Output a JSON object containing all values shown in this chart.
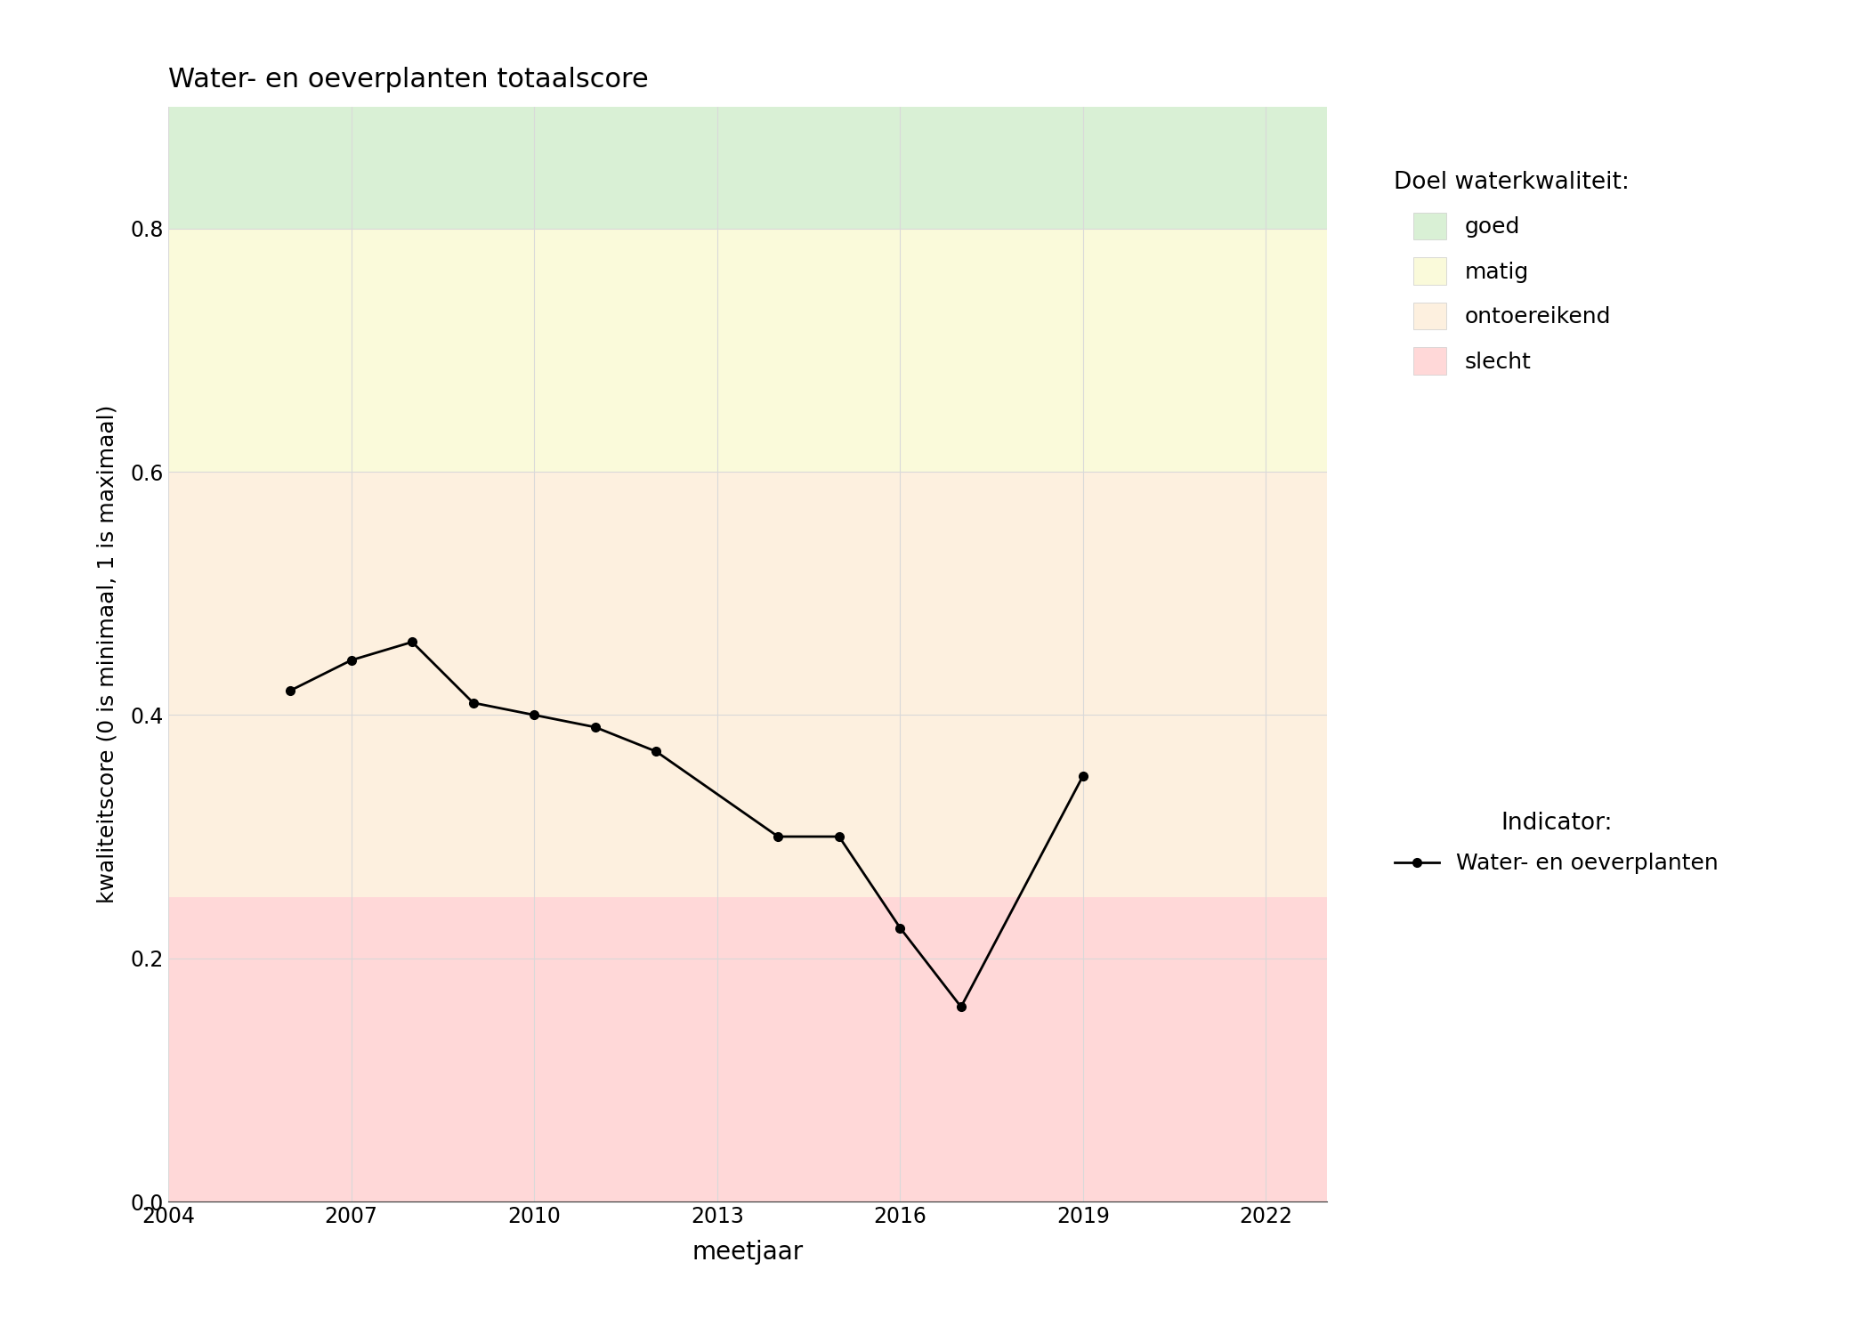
{
  "title": "Water- en oeverplanten totaalscore",
  "xlabel": "meetjaar",
  "ylabel": "kwaliteitscore (0 is minimaal, 1 is maximaal)",
  "years": [
    2006,
    2007,
    2008,
    2009,
    2010,
    2011,
    2012,
    2014,
    2015,
    2016,
    2017,
    2019,
    2022
  ],
  "values": [
    0.42,
    0.445,
    0.46,
    0.41,
    0.4,
    0.39,
    0.37,
    0.3,
    0.3,
    0.225,
    0.16,
    0.35,
    null
  ],
  "years_plot": [
    2006,
    2007,
    2008,
    2009,
    2010,
    2011,
    2012,
    2014,
    2015,
    2016,
    2017,
    2019,
    2022
  ],
  "values_plot": [
    0.42,
    0.445,
    0.46,
    0.41,
    0.4,
    0.39,
    0.37,
    0.3,
    0.3,
    0.225,
    0.16,
    0.35,
    null
  ],
  "xlim": [
    2004,
    2023
  ],
  "ylim": [
    0,
    0.9
  ],
  "xticks": [
    2004,
    2007,
    2010,
    2013,
    2016,
    2019,
    2022
  ],
  "yticks": [
    0.0,
    0.2,
    0.4,
    0.6,
    0.8
  ],
  "zone_goed_color": "#d9f0d5",
  "zone_matig_color": "#fafada",
  "zone_ontoereikend_color": "#fdf0df",
  "zone_slecht_color": "#ffd8d8",
  "zone_goed_range": [
    0.8,
    0.9
  ],
  "zone_matig_range": [
    0.6,
    0.8
  ],
  "zone_ontoereikend_range": [
    0.25,
    0.6
  ],
  "zone_slecht_range": [
    0.0,
    0.25
  ],
  "line_color": "#000000",
  "legend_title_doel": "Doel waterkwaliteit:",
  "legend_labels_doel": [
    "goed",
    "matig",
    "ontoereikend",
    "slecht"
  ],
  "legend_title_indicator": "Indicator:",
  "legend_indicator_label": "Water- en oeverplanten",
  "grid_color": "#d9d9d9"
}
